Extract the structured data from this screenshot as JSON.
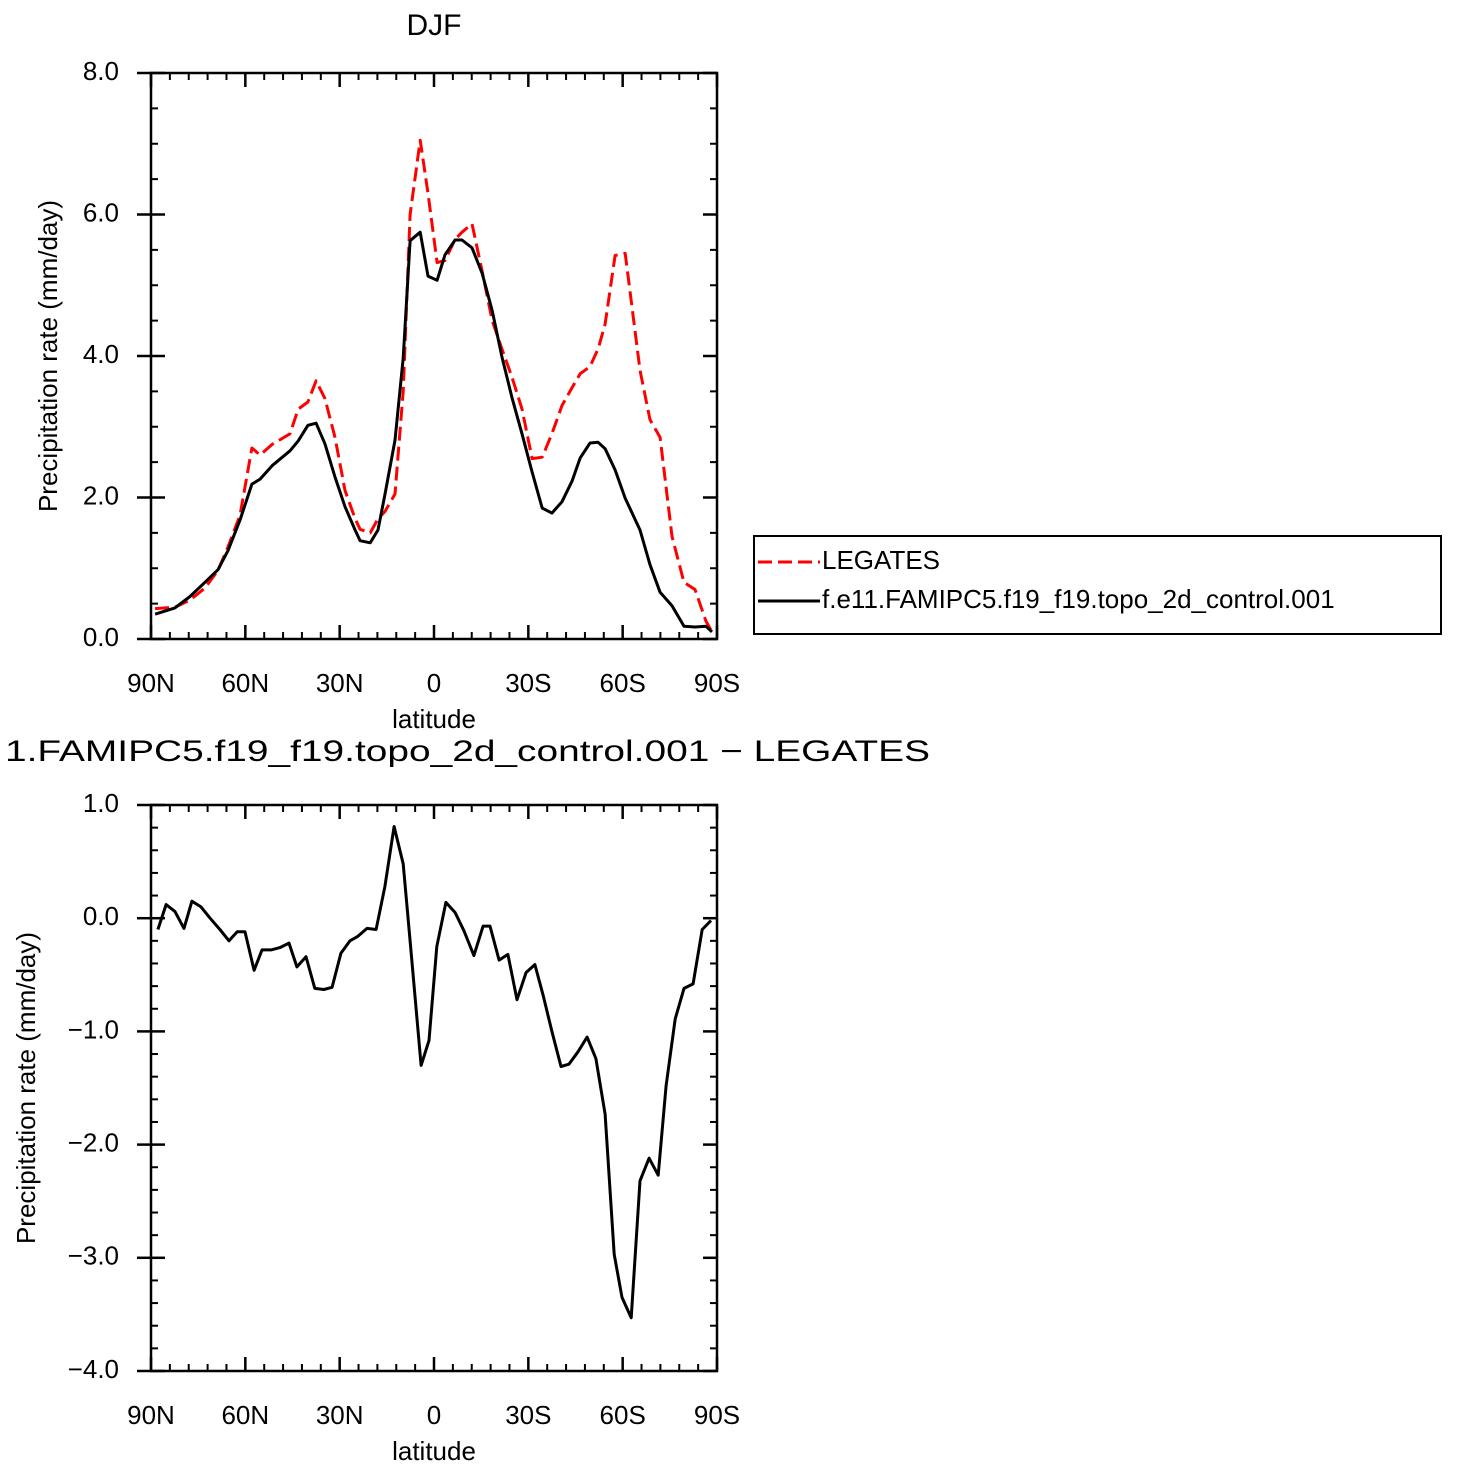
{
  "chart_data": [
    {
      "type": "line",
      "title": "DJF",
      "x_label": "latitude",
      "y_label": "Precipitation rate (mm/day)",
      "xlim": [
        90,
        -90
      ],
      "xticks": [
        {
          "value": 90,
          "label": "90N"
        },
        {
          "value": 60,
          "label": "60N"
        },
        {
          "value": 30,
          "label": "30N"
        },
        0,
        {
          "value": -30,
          "label": "30S"
        },
        {
          "value": -60,
          "label": "60S"
        },
        {
          "value": -90,
          "label": "90S"
        }
      ],
      "ylim": [
        0,
        8
      ],
      "yticks": [
        {
          "value": 0,
          "label": "0.0"
        },
        {
          "value": 2,
          "label": "2.0"
        },
        {
          "value": 4,
          "label": "4.0"
        },
        {
          "value": 6,
          "label": "6.0"
        },
        {
          "value": 8,
          "label": "8.0"
        }
      ],
      "legend": "right",
      "x": [
        88.7,
        82.4,
        77.6,
        72.9,
        68.7,
        65.5,
        61.7,
        57.9,
        55.3,
        51.5,
        45.8,
        43.2,
        40.1,
        37.5,
        34.7,
        31.5,
        28.3,
        25.1,
        23.5,
        20.3,
        17.8,
        15.6,
        12.4,
        9.8,
        7.6,
        4.4,
        1.9,
        -1.0,
        -3.5,
        -6.7,
        -8.9,
        -12.1,
        -15.3,
        -18.5,
        -21.6,
        -24.8,
        -28.0,
        -31.2,
        -34.4,
        -37.5,
        -40.7,
        -43.9,
        -46.5,
        -49.6,
        -52.2,
        -54.4,
        -57.6,
        -60.8,
        -65.5,
        -68.7,
        -71.9,
        -75.7,
        -79.5,
        -83.0,
        -86.5,
        -88.4
      ],
      "series": [
        {
          "name": "LEGATES",
          "color": "#ff0000",
          "dashed": true,
          "values": [
            0.43,
            0.45,
            0.55,
            0.72,
            0.97,
            1.3,
            1.75,
            2.7,
            2.6,
            2.75,
            2.9,
            3.25,
            3.35,
            3.65,
            3.4,
            2.85,
            2.1,
            1.7,
            1.55,
            1.5,
            1.7,
            1.8,
            2.05,
            3.5,
            6.0,
            7.05,
            6.3,
            5.32,
            5.35,
            5.65,
            5.75,
            5.87,
            5.2,
            4.5,
            4.1,
            3.7,
            3.25,
            2.55,
            2.57,
            2.9,
            3.3,
            3.55,
            3.75,
            3.85,
            4.1,
            4.45,
            5.42,
            5.45,
            3.8,
            3.1,
            2.85,
            1.45,
            0.8,
            0.7,
            0.25,
            0.1
          ]
        },
        {
          "name": "f.e11.FAMIPC5.f19_f19.topo_2d_control.001",
          "color": "#000000",
          "dashed": false,
          "values": [
            0.35,
            0.44,
            0.6,
            0.8,
            0.98,
            1.25,
            1.68,
            2.19,
            2.26,
            2.45,
            2.66,
            2.8,
            3.02,
            3.05,
            2.76,
            2.29,
            1.87,
            1.54,
            1.39,
            1.36,
            1.54,
            2.04,
            2.81,
            3.97,
            5.63,
            5.75,
            5.13,
            5.07,
            5.43,
            5.64,
            5.64,
            5.53,
            5.17,
            4.64,
            3.99,
            3.41,
            2.9,
            2.36,
            1.85,
            1.78,
            1.94,
            2.23,
            2.56,
            2.77,
            2.78,
            2.69,
            2.39,
            1.99,
            1.54,
            1.05,
            0.66,
            0.47,
            0.18,
            0.17,
            0.18,
            0.1
          ]
        }
      ]
    },
    {
      "type": "line",
      "title": "1.FAMIPC5.f19_f19.topo_2d_control.001 − LEGATES",
      "x_label": "latitude",
      "y_label": "Precipitation rate (mm/day)",
      "xlim": [
        90,
        -90
      ],
      "xticks": [
        {
          "value": 90,
          "label": "90N"
        },
        {
          "value": 60,
          "label": "60N"
        },
        {
          "value": 30,
          "label": "30N"
        },
        0,
        {
          "value": -30,
          "label": "30S"
        },
        {
          "value": -60,
          "label": "60S"
        },
        {
          "value": -90,
          "label": "90S"
        }
      ],
      "ylim": [
        -4,
        1
      ],
      "yticks": [
        {
          "value": -4,
          "label": "−4.0"
        },
        {
          "value": -3,
          "label": "−3.0"
        },
        {
          "value": -2,
          "label": "−2.0"
        },
        {
          "value": -1,
          "label": "−1.0"
        },
        {
          "value": 0,
          "label": "0.0"
        },
        {
          "value": 1,
          "label": "1.0"
        }
      ],
      "x": [
        87.8,
        85.2,
        82.4,
        79.5,
        77.0,
        74.1,
        71.2,
        68.1,
        65.2,
        62.6,
        60.1,
        57.2,
        54.7,
        51.8,
        49.0,
        46.1,
        43.6,
        40.7,
        37.9,
        35.0,
        32.4,
        29.6,
        26.7,
        24.2,
        21.3,
        18.4,
        15.6,
        12.7,
        9.8,
        7.3,
        4.1,
        1.6,
        -0.9,
        -3.8,
        -6.7,
        -9.5,
        -12.7,
        -15.6,
        -17.8,
        -20.7,
        -23.5,
        -26.4,
        -29.3,
        -32.1,
        -34.7,
        -37.5,
        -40.4,
        -42.9,
        -45.8,
        -48.7,
        -51.5,
        -54.4,
        -57.3,
        -59.8,
        -62.7,
        -65.5,
        -68.4,
        -71.3,
        -73.8,
        -76.7,
        -79.5,
        -82.4,
        -85.3,
        -88.1
      ],
      "series": [
        {
          "color": "#000000",
          "dashed": false,
          "values": [
            -0.1,
            0.12,
            0.06,
            -0.09,
            0.15,
            0.1,
            0,
            -0.1,
            -0.2,
            -0.12,
            -0.12,
            -0.46,
            -0.28,
            -0.28,
            -0.26,
            -0.22,
            -0.43,
            -0.34,
            -0.62,
            -0.63,
            -0.61,
            -0.31,
            -0.2,
            -0.16,
            -0.09,
            -0.1,
            0.28,
            0.81,
            0.48,
            -0.29,
            -1.3,
            -1.08,
            -0.25,
            0.14,
            0.05,
            -0.11,
            -0.33,
            -0.07,
            -0.07,
            -0.37,
            -0.32,
            -0.72,
            -0.48,
            -0.41,
            -0.68,
            -1.0,
            -1.31,
            -1.29,
            -1.18,
            -1.05,
            -1.24,
            -1.73,
            -2.97,
            -3.35,
            -3.53,
            -2.32,
            -2.12,
            -2.27,
            -1.48,
            -0.89,
            -0.62,
            -0.58,
            -0.1,
            -0.02
          ]
        }
      ]
    }
  ]
}
